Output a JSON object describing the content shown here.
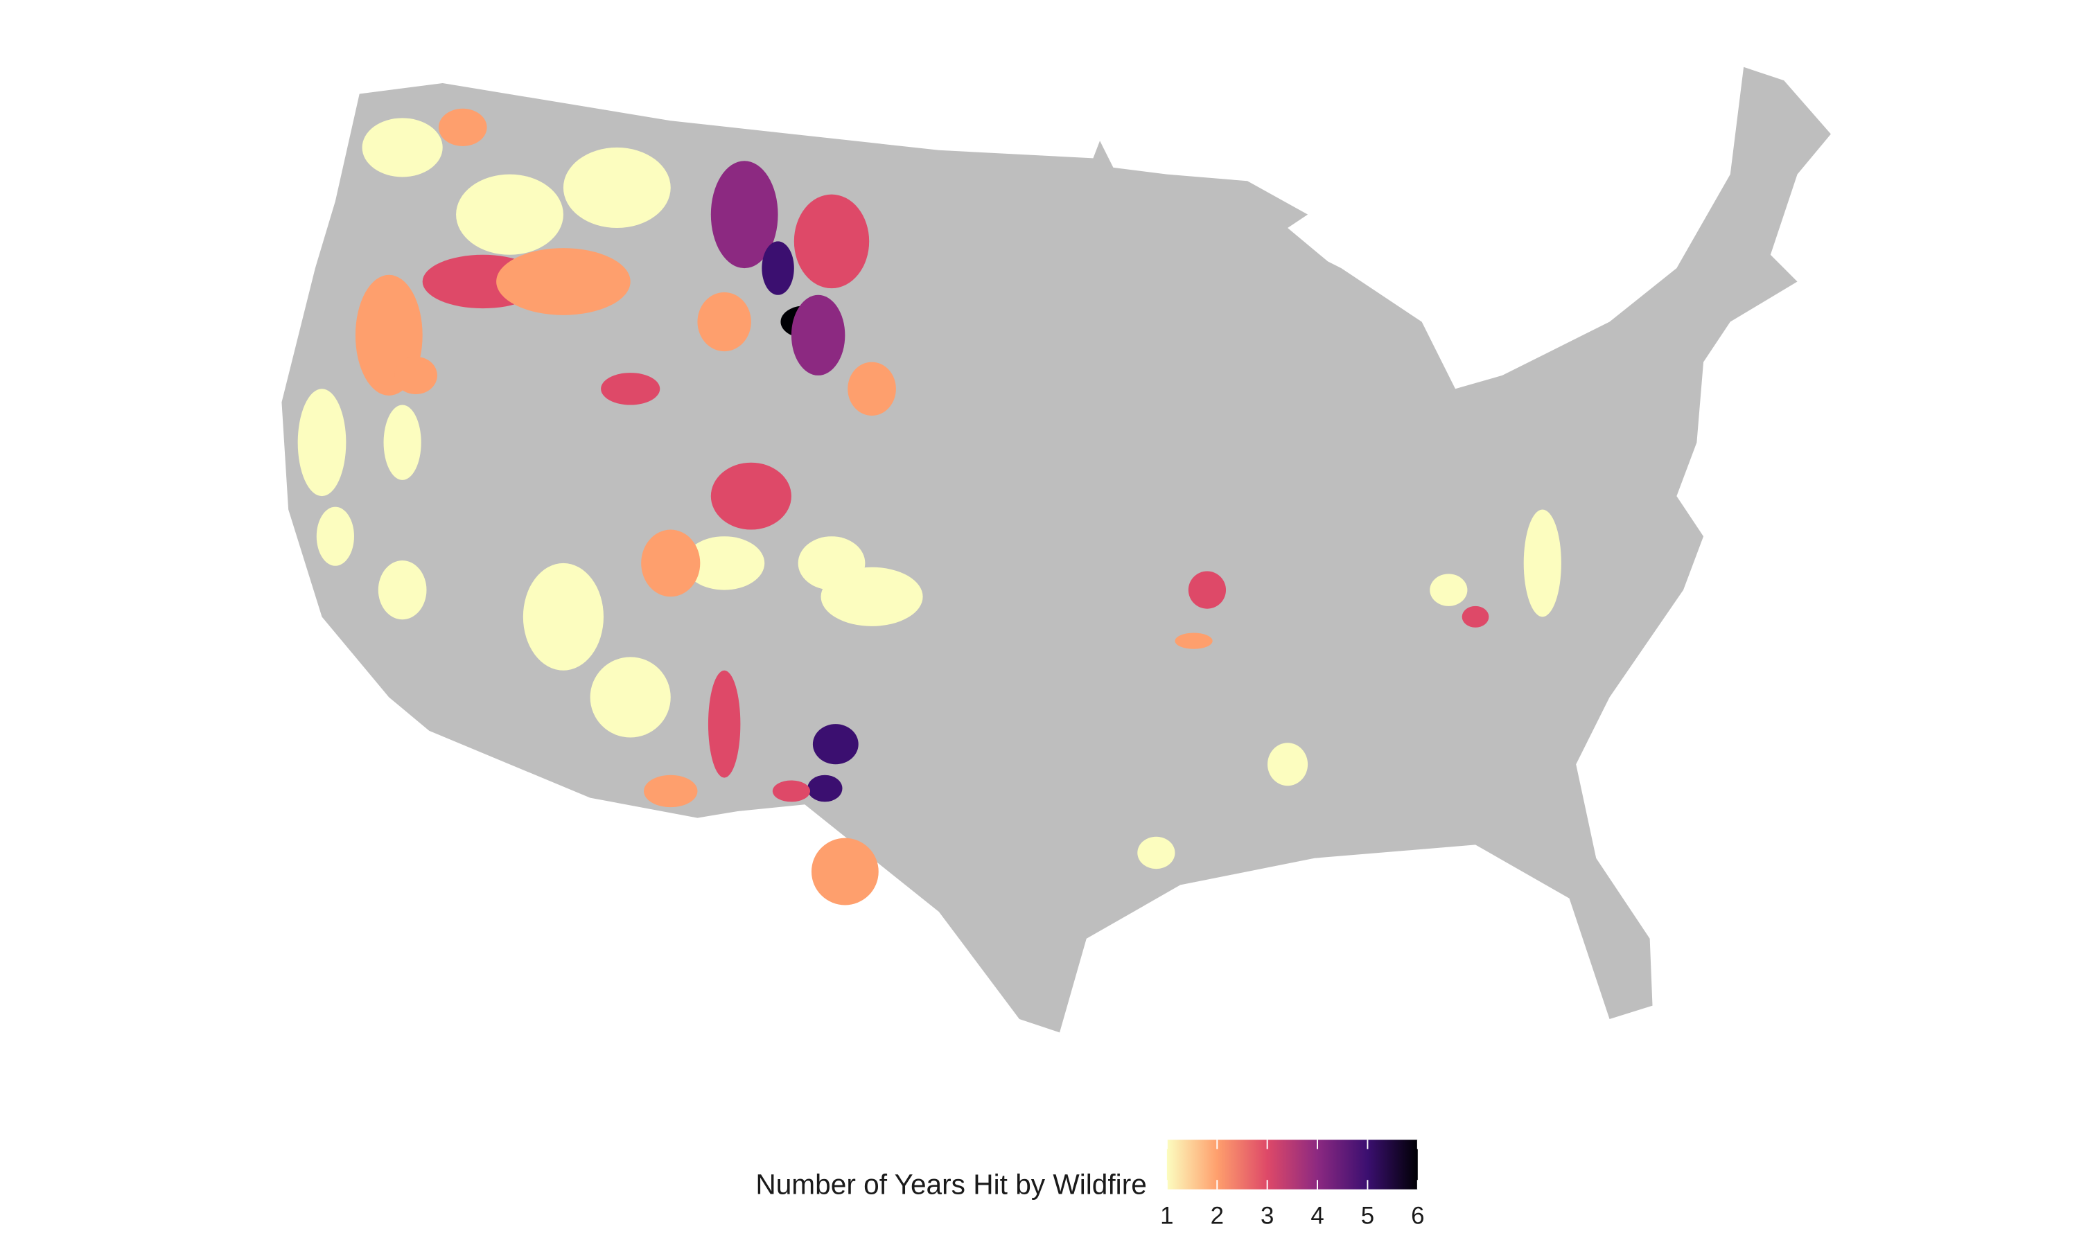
{
  "map": {
    "legend": {
      "title": "Number of Years Hit by Wildfire",
      "range": [
        1,
        6
      ],
      "ticks": [
        1,
        2,
        3,
        4,
        5,
        6
      ],
      "colors": [
        "#fcfdbf",
        "#fe9f6d",
        "#de4968",
        "#8c2981",
        "#3b0f70",
        "#000004"
      ]
    },
    "land_color": "#bebebe",
    "regions": {
      "values": [
        1,
        2,
        1,
        3,
        2,
        1,
        1,
        2,
        3,
        4,
        5,
        6,
        4,
        3,
        2,
        1,
        2,
        3,
        1,
        2,
        1,
        3,
        5,
        5,
        3,
        2,
        1,
        1,
        1,
        1,
        2,
        1,
        3,
        1,
        3,
        1,
        2,
        1,
        1,
        2
      ]
    }
  }
}
